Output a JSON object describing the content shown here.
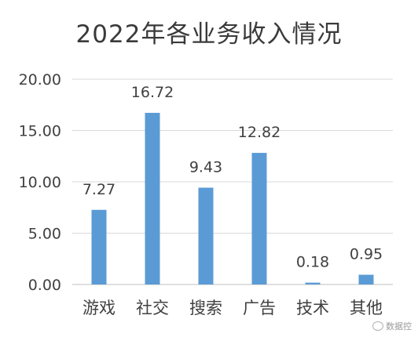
{
  "chart_data": {
    "type": "bar",
    "title": "2022年各业务收入情况",
    "categories": [
      "游戏",
      "社交",
      "搜索",
      "广告",
      "技术",
      "其他"
    ],
    "values": [
      7.27,
      16.72,
      9.43,
      12.82,
      0.18,
      0.95
    ],
    "data_labels": [
      "7.27",
      "16.72",
      "9.43",
      "12.82",
      "0.18",
      "0.95"
    ],
    "ylim": [
      0,
      20
    ],
    "yticks": [
      "0.00",
      "5.00",
      "10.00",
      "15.00",
      "20.00"
    ],
    "xlabel": "",
    "ylabel": "",
    "grid": true,
    "legend": "none",
    "bar_color": "#5b9bd5",
    "grid_color": "#d9d9d9"
  },
  "watermark": {
    "text": "数据控"
  }
}
